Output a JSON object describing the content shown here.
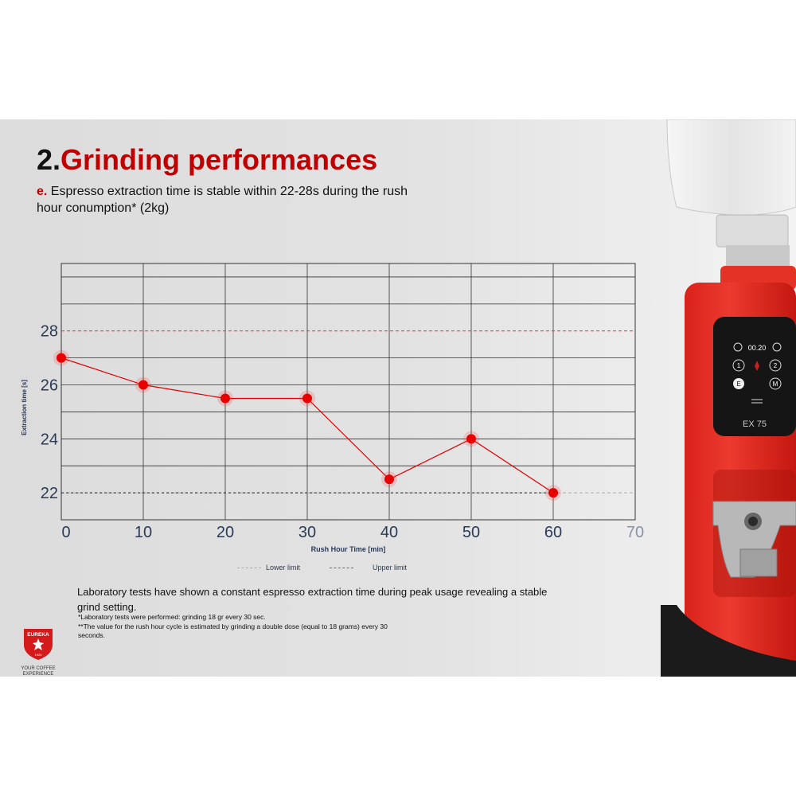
{
  "heading": {
    "number": "2.",
    "text": "Grinding performances"
  },
  "subheading": {
    "label": "e.",
    "text": " Espresso extraction time is stable within 22-28s during the rush hour conumption* (2kg)"
  },
  "chart_data": {
    "type": "line",
    "xlabel": "Rush Hour Time [min]",
    "ylabel": "Extraction time [s]",
    "xlim": [
      0,
      70
    ],
    "ylim": [
      21,
      30.5
    ],
    "x_ticks": [
      "0",
      "10",
      "20",
      "30",
      "40",
      "50",
      "60",
      "70"
    ],
    "y_ticks": [
      "22",
      "24",
      "26",
      "28"
    ],
    "grid": true,
    "legend_placement": "bottom",
    "series": [
      {
        "x": [
          0,
          10,
          20,
          30,
          40,
          50,
          60
        ],
        "y": [
          27,
          26,
          25.5,
          25.5,
          22.5,
          24,
          22
        ]
      }
    ],
    "reference_lines": [
      {
        "name": "Lower limit",
        "y": 22
      },
      {
        "name": "Upper limit",
        "y": 28
      }
    ],
    "colors": {
      "series": "#e00000",
      "lower_limit": "#aaaaaa",
      "upper_limit": "#d04040",
      "grid": "#333333"
    }
  },
  "legend": {
    "lower": "Lower limit",
    "upper": "Upper limit"
  },
  "body_text": "Laboratory tests have shown a constant espresso extraction time during peak usage revealing a stable grind setting.",
  "footnotes": [
    "*Laboratory tests were performed: grinding 18 gr every 30 sec.",
    "**The value for the rush hour cycle is estimated by grinding a double dose (equal to 18 grams) every 30 seconds."
  ],
  "logo": {
    "brand": "EUREKA",
    "year": "1920",
    "tagline": "YOUR COFFEE EXPERIENCE"
  },
  "machine_display": {
    "timer": "00.20",
    "model": "EX 75",
    "buttons": [
      "1",
      "2",
      "E",
      "M"
    ]
  }
}
